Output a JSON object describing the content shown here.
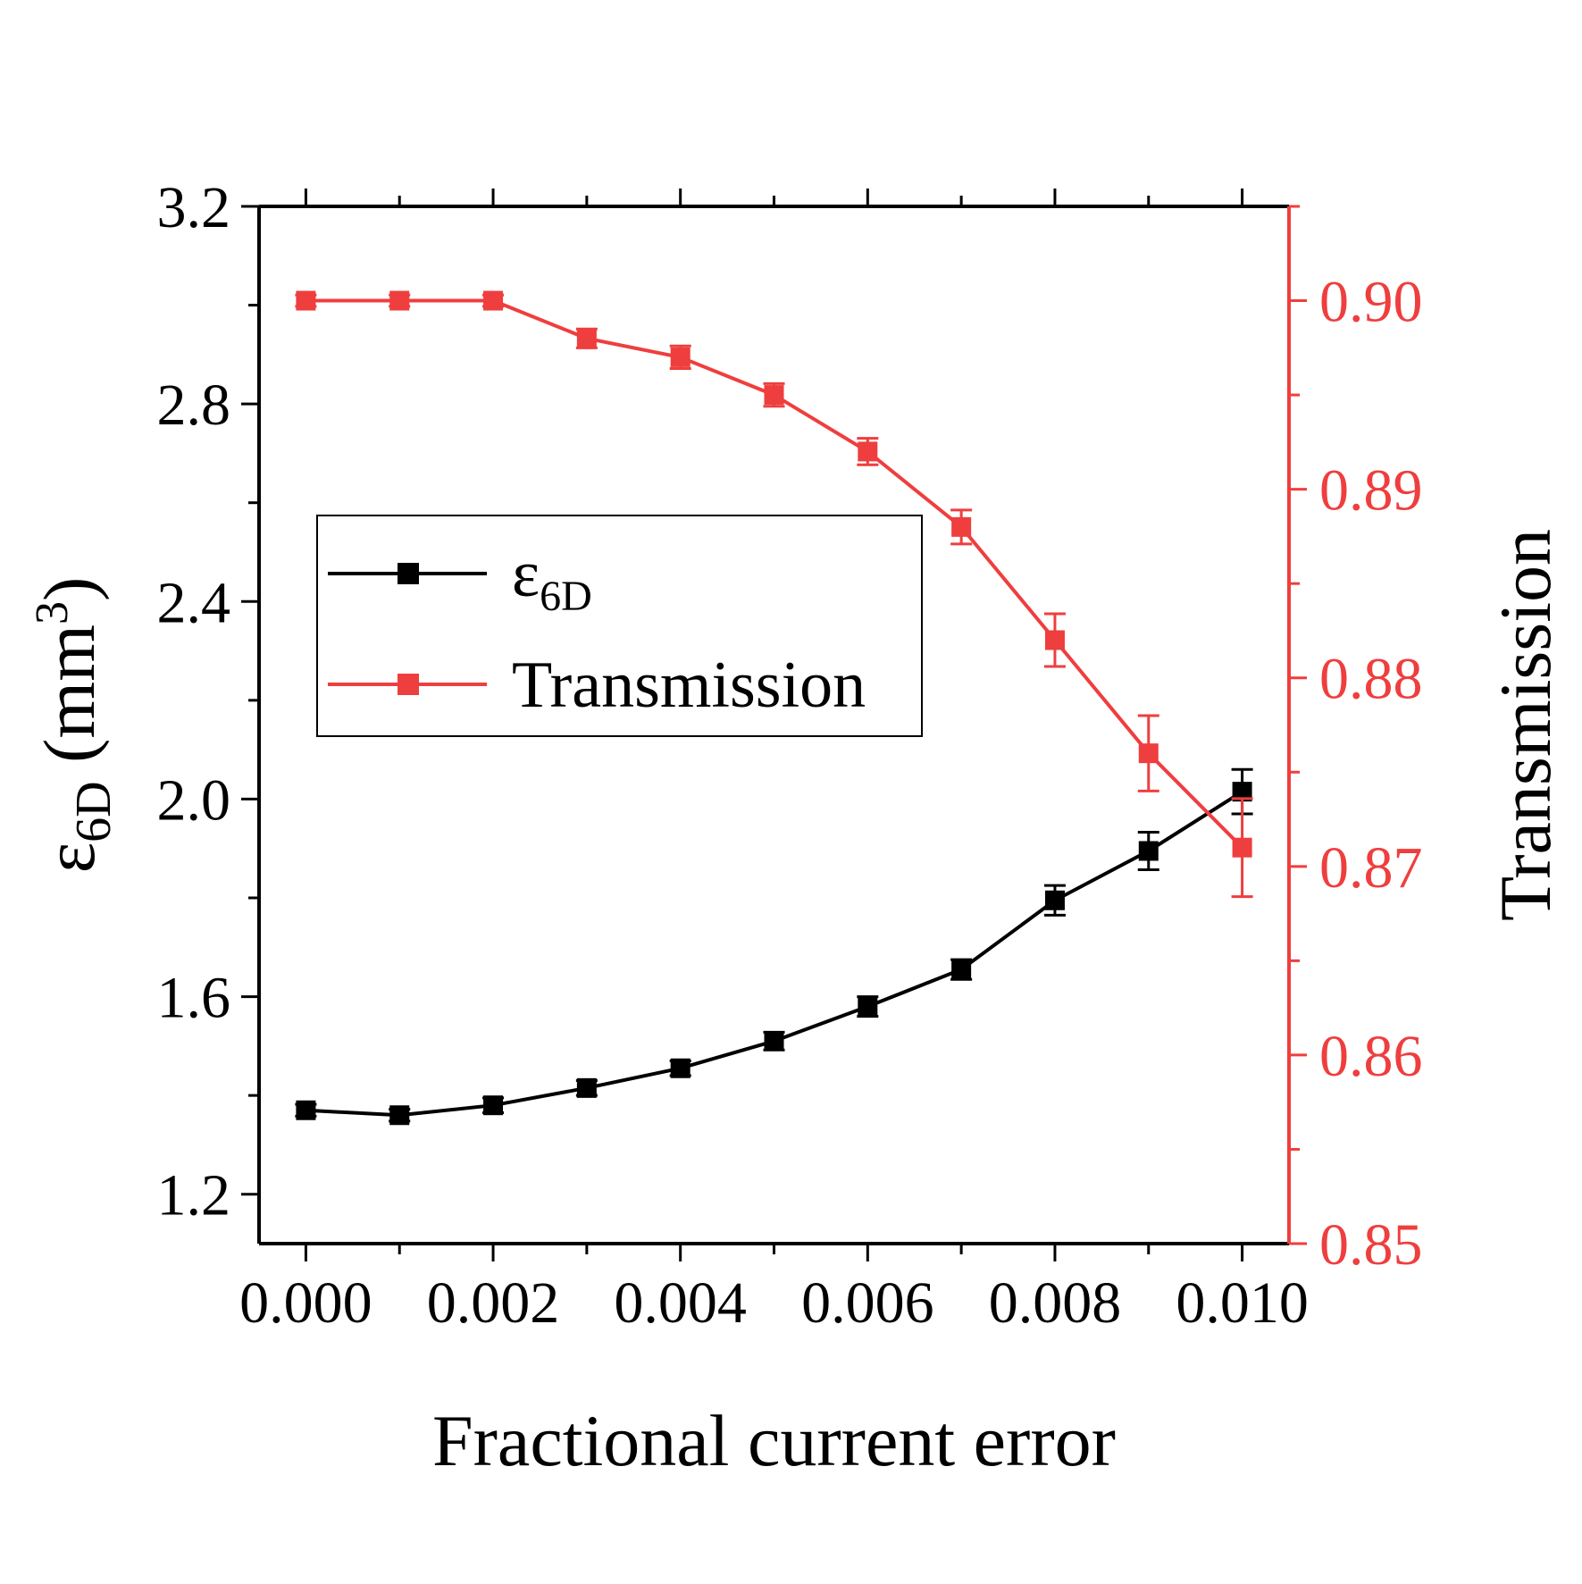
{
  "chart_data": {
    "type": "line",
    "x_label": "Fractional current error",
    "y_label_left": {
      "base": "ε",
      "sub": "6D",
      "unit_open": " (mm",
      "unit_sup": "3",
      "unit_close": ")"
    },
    "y_label_right": "Transmission",
    "x": [
      0.0,
      0.001,
      0.002,
      0.003,
      0.004,
      0.005,
      0.006,
      0.007,
      0.008,
      0.009,
      0.01
    ],
    "x_range": [
      -0.0005,
      0.0105
    ],
    "x_ticks": [
      "0.000",
      "0.002",
      "0.004",
      "0.006",
      "0.008",
      "0.010"
    ],
    "x_tick_values": [
      0.0,
      0.002,
      0.004,
      0.006,
      0.008,
      0.01
    ],
    "y_left_range": [
      1.1,
      3.2
    ],
    "y_left_ticks": [
      "1.2",
      "1.6",
      "2.0",
      "2.4",
      "2.8",
      "3.2"
    ],
    "y_left_tick_values": [
      1.2,
      1.6,
      2.0,
      2.4,
      2.8,
      3.2
    ],
    "y_right_range": [
      0.85,
      0.905
    ],
    "y_right_ticks": [
      "0.85",
      "0.86",
      "0.87",
      "0.88",
      "0.89",
      "0.90"
    ],
    "y_right_tick_values": [
      0.85,
      0.86,
      0.87,
      0.88,
      0.89,
      0.9
    ],
    "series": [
      {
        "name": "ε6D",
        "legend_base": "ε",
        "legend_sub": "6D",
        "axis": "left",
        "color": "#000000",
        "values": [
          1.37,
          1.36,
          1.38,
          1.415,
          1.455,
          1.51,
          1.58,
          1.655,
          1.795,
          1.895,
          2.015
        ],
        "errors": [
          0.012,
          0.012,
          0.015,
          0.015,
          0.015,
          0.018,
          0.02,
          0.02,
          0.03,
          0.038,
          0.045
        ]
      },
      {
        "name": "Transmission",
        "legend_base": "Transmission",
        "legend_sub": "",
        "axis": "right",
        "color": "#ef3e3e",
        "values": [
          0.9,
          0.9,
          0.9,
          0.898,
          0.897,
          0.895,
          0.892,
          0.888,
          0.882,
          0.876,
          0.871
        ],
        "errors": [
          0.0003,
          0.0003,
          0.0003,
          0.0005,
          0.0006,
          0.0006,
          0.0007,
          0.0009,
          0.0014,
          0.002,
          0.0026
        ]
      }
    ],
    "legend_position": "center-left"
  }
}
